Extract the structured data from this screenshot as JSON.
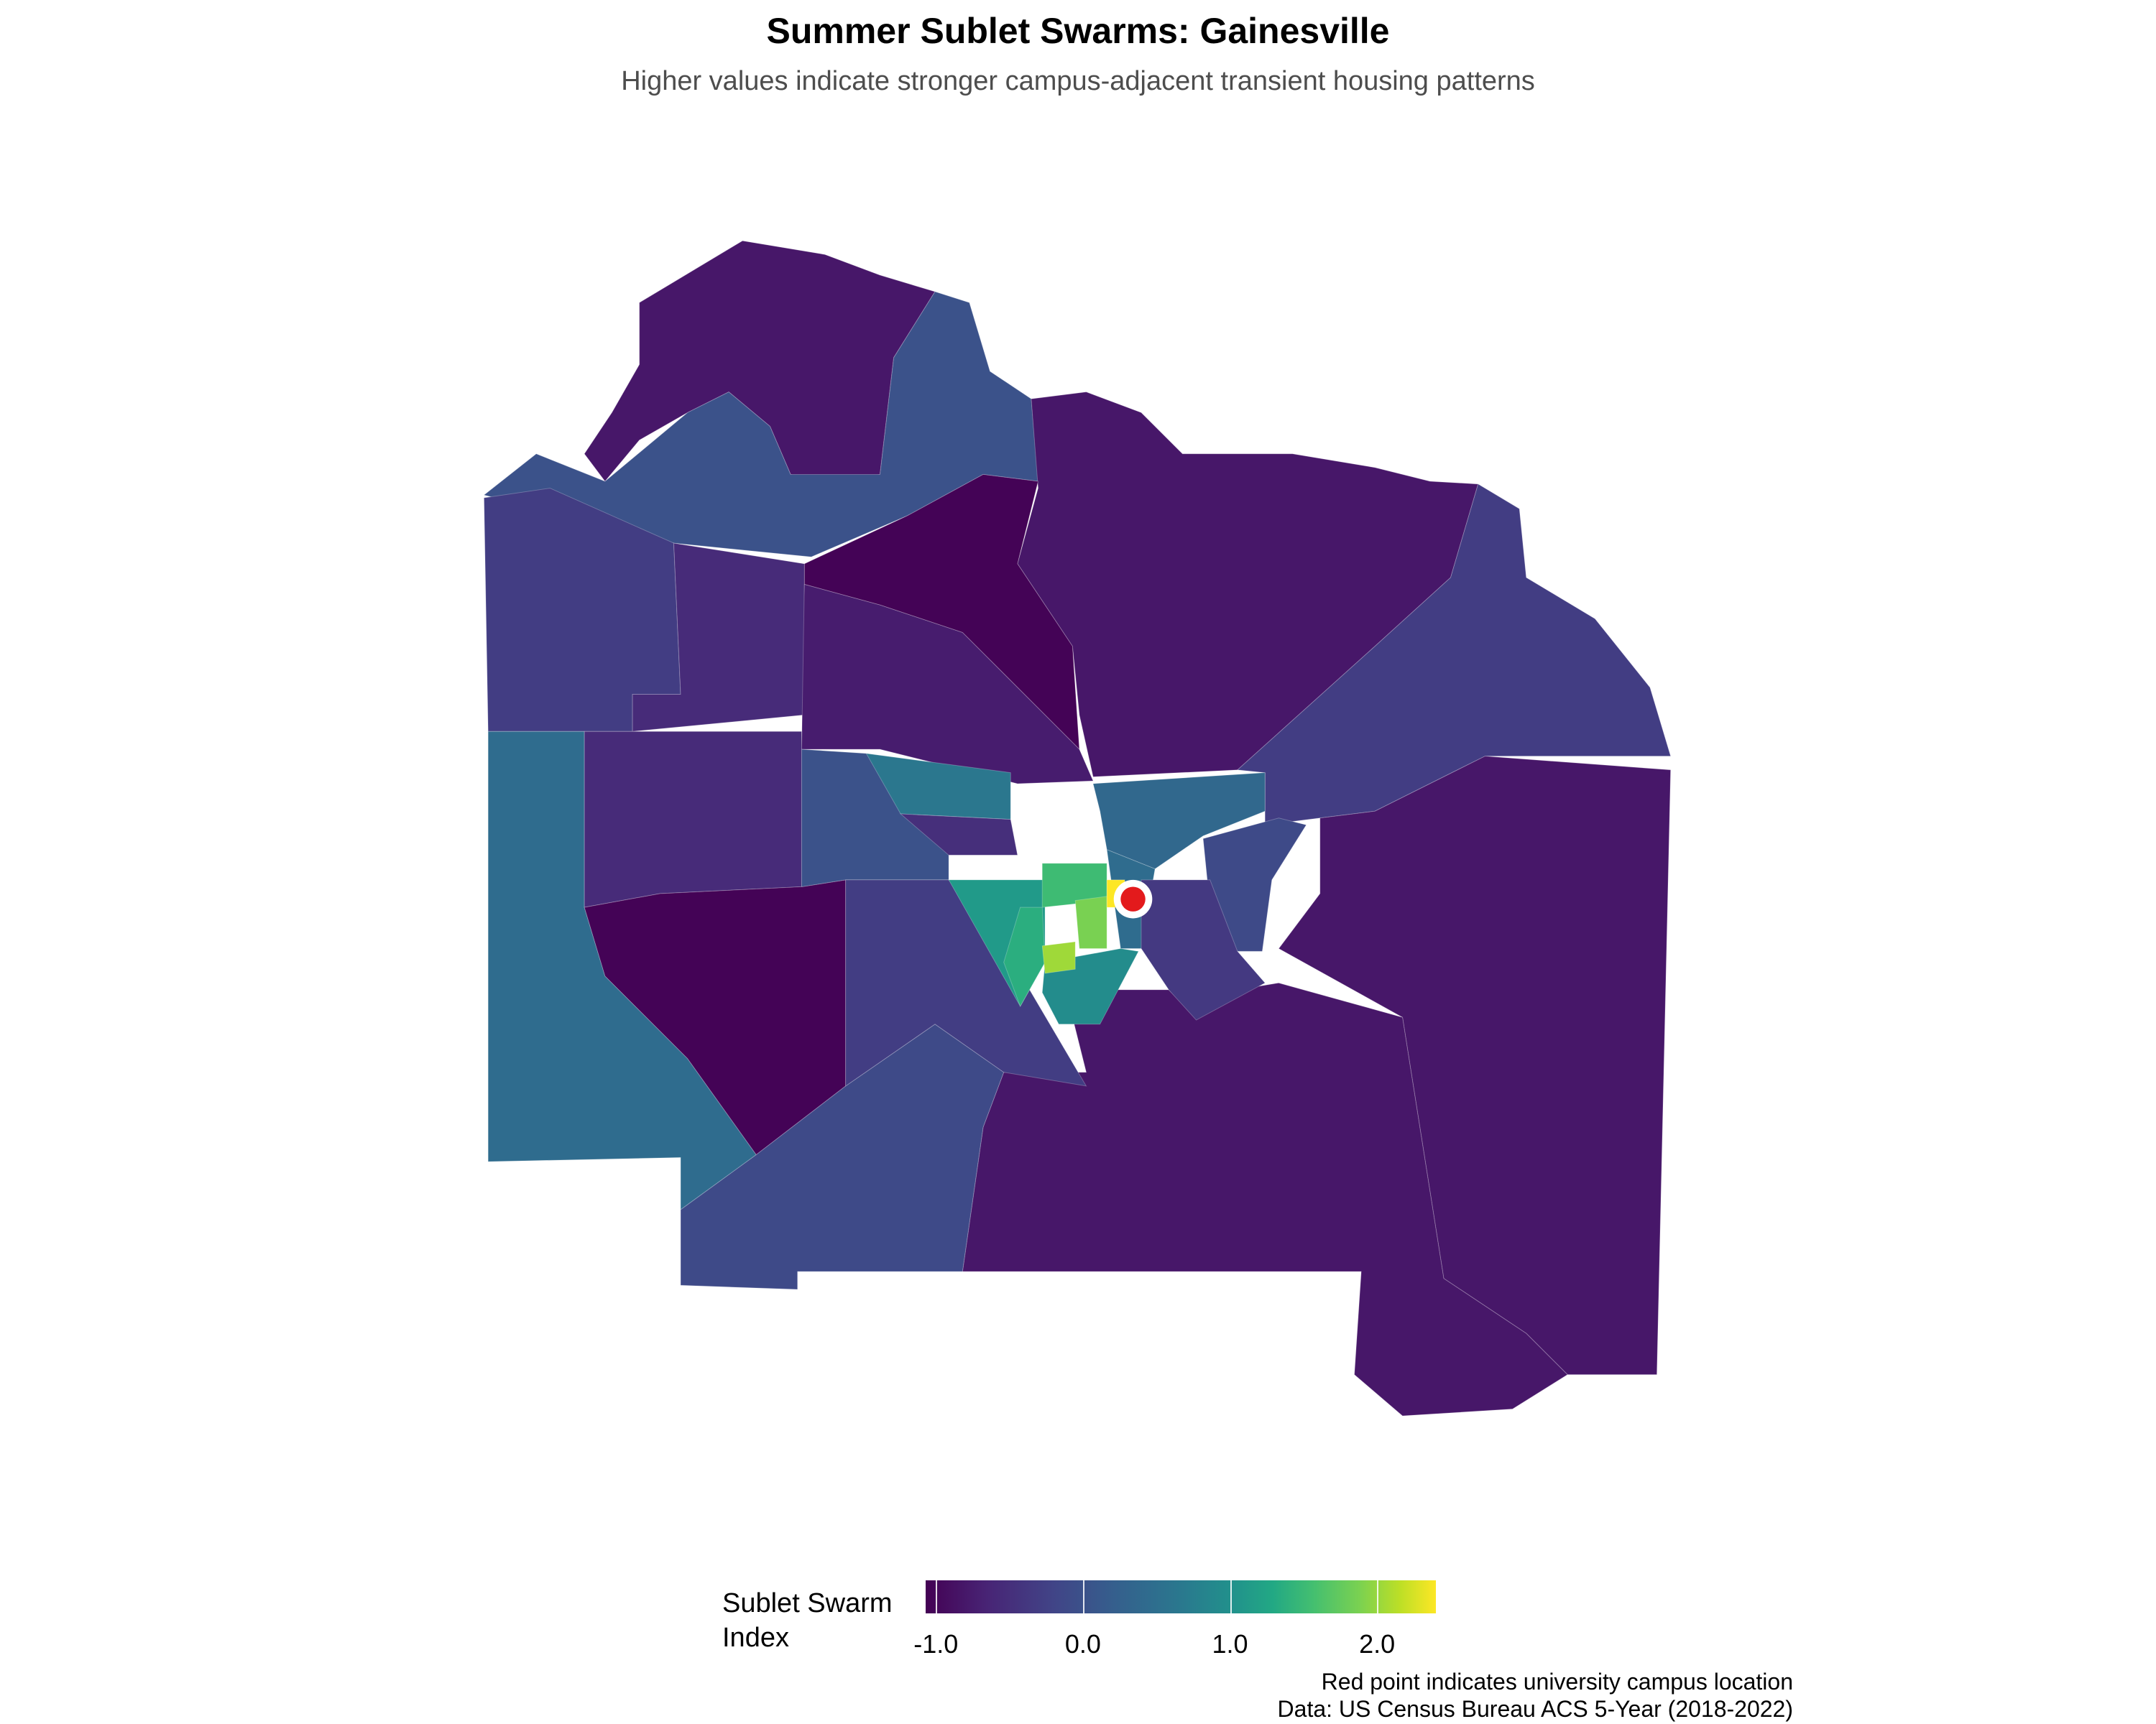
{
  "title": "Summer Sublet Swarms: Gainesville",
  "subtitle": "Higher values indicate stronger campus-adjacent transient housing patterns",
  "caption": {
    "line1": "Red point indicates university campus location",
    "line2": "Data: US Census Bureau ACS 5-Year (2018-2022)"
  },
  "chart_data": {
    "type": "heatmap",
    "subtype": "choropleth map",
    "title": "Summer Sublet Swarms: Gainesville",
    "subtitle": "Higher values indicate stronger campus-adjacent transient housing patterns",
    "legend": {
      "title": "Sublet Swarm Index",
      "title_lines": [
        "Sublet Swarm",
        "Index"
      ],
      "placement": "bottom",
      "palette": "viridis",
      "range": [
        -1.07,
        2.4
      ],
      "ticks": [
        -1.0,
        0.0,
        1.0,
        2.0
      ],
      "tick_labels": [
        "-1.0",
        "0.0",
        "1.0",
        "2.0"
      ]
    },
    "regions": {
      "north_lobe": -0.85,
      "north_band": -0.2,
      "northeast": -0.85,
      "north_center": -1.05,
      "west_upper": -0.45,
      "west_upper_inner": -0.65,
      "north_center_lower": -0.8,
      "east_upper": -0.45,
      "east": -0.85,
      "south_center": -0.85,
      "west": 0.15,
      "west_center": -0.65,
      "southwest": -1.05,
      "south": -0.3,
      "center_west_block": -0.2,
      "center_strip": 0.3,
      "center_small": -0.6,
      "center_ring": -0.45,
      "center_triangle": 0.8,
      "center_north_tract": 1.3,
      "campus_tract": 2.4,
      "campus_east": 0.15,
      "east_center": -0.3,
      "northeast_center": 0.1,
      "east_small": -0.6,
      "southeast_center": -0.5,
      "south_of_center": 0.6,
      "center_green": 1.1,
      "center_lightgreen": 1.9,
      "center_lime": 1.7
    },
    "marker": {
      "label": "university campus location",
      "color": "#e31a1c"
    }
  }
}
